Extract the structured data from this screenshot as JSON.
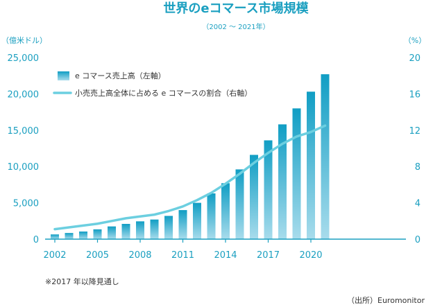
{
  "chart_data": {
    "type": "bar",
    "title": "世界のeコマース市場規模",
    "subtitle": "（2002 〜 2021年）",
    "y_left_label": "（億米ドル）",
    "y_right_label": "（%）",
    "x": [
      2002,
      2003,
      2004,
      2005,
      2006,
      2007,
      2008,
      2009,
      2010,
      2011,
      2012,
      2013,
      2014,
      2015,
      2016,
      2017,
      2018,
      2019,
      2020,
      2021
    ],
    "x_ticks": [
      "2002",
      "2005",
      "2008",
      "2011",
      "2014",
      "2017",
      "2020"
    ],
    "y_left_ticks": [
      "0",
      "5,000",
      "10,000",
      "15,000",
      "20,000",
      "25,000"
    ],
    "y_right_ticks": [
      "0",
      "4",
      "8",
      "12",
      "16",
      "20"
    ],
    "ylim_left": [
      0,
      25000
    ],
    "ylim_right": [
      0,
      20
    ],
    "series": [
      {
        "name": "e コマース売上高（左軸）",
        "type": "bar",
        "axis": "left",
        "values": [
          650,
          850,
          1050,
          1350,
          1750,
          2100,
          2450,
          2700,
          3200,
          4000,
          5000,
          6300,
          7700,
          9600,
          11600,
          13600,
          15800,
          18000,
          20300,
          22700
        ]
      },
      {
        "name": "小売売上高全体に占める e コマースの割合（右軸）",
        "type": "line",
        "axis": "right",
        "values": [
          1.1,
          1.3,
          1.5,
          1.7,
          2.0,
          2.3,
          2.5,
          2.7,
          3.1,
          3.6,
          4.3,
          5.1,
          6.1,
          7.2,
          8.4,
          9.5,
          10.5,
          11.3,
          11.8,
          12.5
        ]
      }
    ],
    "note": "※2017 年以降見通し",
    "source": "（出所）Euromonitor",
    "colors": {
      "accent": "#1a9fc0",
      "bar_top": "#119ec4",
      "bar_bottom": "#a8dcec",
      "line": "#6ccfe0",
      "axis": "#1a9fc0"
    }
  }
}
